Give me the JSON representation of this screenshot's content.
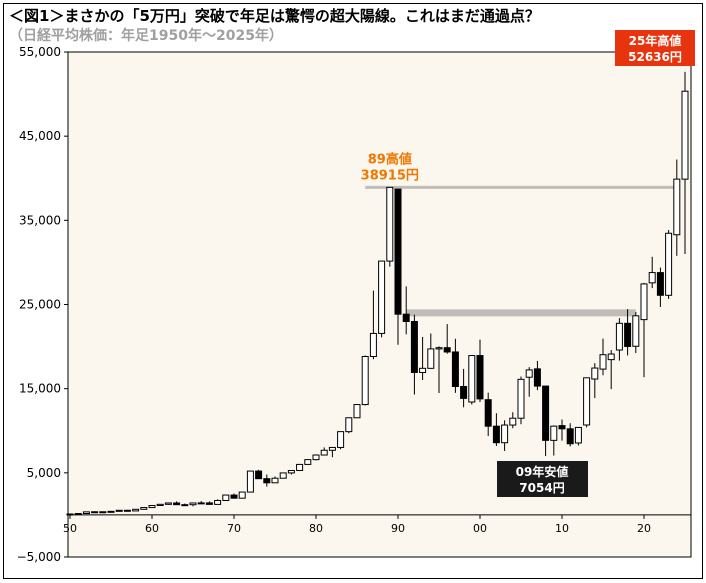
{
  "title": "＜図1＞まさかの「5万円」突破で年足は驚愕の超大陽線。これはまだ通過点？",
  "subtitle": "（日経平均株価：年足1950年〜2025年）",
  "colors": {
    "plot_bg": "#fbf6ee",
    "up_fill": "#ffffff",
    "down_fill": "#000000",
    "level_line": "#c0bdb8",
    "orange": "#f07800",
    "red_box": "#e8330f"
  },
  "annotations": [
    {
      "line1": "89高値",
      "line2": "38915円",
      "color": "orange",
      "value": 38915
    },
    {
      "line1": "09年安値",
      "line2": "7054円",
      "color": "black_box",
      "value": 7054
    },
    {
      "line1": "25年高値",
      "line2": "52636円",
      "color": "red_box",
      "value": 52636
    }
  ],
  "chart_data": {
    "type": "candlestick",
    "title": "",
    "xlabel": "",
    "ylabel": "",
    "ylim": [
      -5000,
      55000
    ],
    "xlim": [
      1950,
      2025
    ],
    "yticks": [
      -5000,
      5000,
      15000,
      25000,
      35000,
      45000,
      55000
    ],
    "ytick_labels": [
      "−5,000",
      "5,000",
      "15,000",
      "25,000",
      "35,000",
      "45,000",
      "55,000"
    ],
    "xticks": [
      1950,
      1960,
      1970,
      1980,
      1990,
      2000,
      2010,
      2020
    ],
    "xtick_labels": [
      "50",
      "60",
      "70",
      "80",
      "90",
      "00",
      "10",
      "20"
    ],
    "grid": false,
    "reference_lines": [
      38915,
      24000
    ],
    "years": [
      1950,
      1951,
      1952,
      1953,
      1954,
      1955,
      1956,
      1957,
      1958,
      1959,
      1960,
      1961,
      1962,
      1963,
      1964,
      1965,
      1966,
      1967,
      1968,
      1969,
      1970,
      1971,
      1972,
      1973,
      1974,
      1975,
      1976,
      1977,
      1978,
      1979,
      1980,
      1981,
      1982,
      1983,
      1984,
      1985,
      1986,
      1987,
      1988,
      1989,
      1990,
      1991,
      1992,
      1993,
      1994,
      1995,
      1996,
      1997,
      1998,
      1999,
      2000,
      2001,
      2002,
      2003,
      2004,
      2005,
      2006,
      2007,
      2008,
      2009,
      2010,
      2011,
      2012,
      2013,
      2014,
      2015,
      2016,
      2017,
      2018,
      2019,
      2020,
      2021,
      2022,
      2023,
      2024,
      2025
    ],
    "open": [
      109,
      101,
      166,
      362,
      377,
      356,
      425,
      549,
      475,
      666,
      874,
      1117,
      1259,
      1420,
      1217,
      1216,
      1417,
      1430,
      1250,
      1715,
      2359,
      1987,
      2714,
      5208,
      4306,
      3817,
      4359,
      4990,
      5280,
      6001,
      6570,
      7116,
      7682,
      8017,
      9894,
      11543,
      13113,
      18821,
      21564,
      30159,
      38712,
      23849,
      22983,
      16925,
      17417,
      19723,
      19868,
      19361,
      15258,
      13416,
      18934,
      13691,
      10542,
      8578,
      10676,
      11488,
      16361,
      17353,
      15307,
      8859,
      10609,
      10229,
      8549,
      10688,
      16147,
      17325,
      18450,
      19594,
      22764,
      20039,
      23204,
      27575,
      28791,
      26094,
      33288,
      39894
    ],
    "high": [
      110,
      170,
      368,
      420,
      380,
      430,
      560,
      600,
      670,
      880,
      1130,
      1260,
      1450,
      1610,
      1350,
      1430,
      1650,
      1600,
      1850,
      2360,
      2540,
      2740,
      5210,
      5360,
      4790,
      4570,
      5000,
      5290,
      6000,
      6590,
      7190,
      8020,
      8020,
      9890,
      11580,
      13130,
      18940,
      26650,
      30160,
      38915,
      38715,
      27150,
      23800,
      21150,
      21550,
      20020,
      22670,
      20920,
      17350,
      19000,
      20830,
      14530,
      12080,
      11240,
      12200,
      16450,
      17560,
      18300,
      15160,
      10640,
      11340,
      10890,
      10430,
      16320,
      18030,
      20950,
      19590,
      23380,
      24450,
      24100,
      27570,
      30670,
      29390,
      33850,
      42225,
      52636
    ],
    "low": [
      85,
      95,
      160,
      290,
      315,
      355,
      420,
      470,
      475,
      665,
      870,
      1090,
      1200,
      1190,
      1200,
      1020,
      1370,
      1250,
      1250,
      1700,
      1930,
      1980,
      2710,
      4440,
      3360,
      3800,
      4350,
      4800,
      5270,
      5970,
      6480,
      7110,
      6850,
      7800,
      9700,
      11500,
      13000,
      18500,
      21100,
      29500,
      20220,
      21450,
      14300,
      16030,
      17370,
      14480,
      19160,
      14500,
      12790,
      13120,
      13420,
      9380,
      8190,
      7600,
      10300,
      10770,
      14040,
      14830,
      6994,
      7054,
      8820,
      8140,
      8240,
      10400,
      13880,
      16590,
      14950,
      18330,
      18950,
      19240,
      16360,
      26950,
      24710,
      25660,
      30780,
      31000
    ],
    "close": [
      101,
      166,
      362,
      377,
      356,
      425,
      549,
      475,
      666,
      874,
      1117,
      1259,
      1420,
      1217,
      1216,
      1417,
      1430,
      1250,
      1715,
      2359,
      1987,
      2714,
      5208,
      4306,
      3817,
      4359,
      4990,
      5280,
      6001,
      6570,
      7116,
      7682,
      8017,
      9894,
      11543,
      13113,
      18821,
      21564,
      30159,
      38916,
      23849,
      22983,
      16925,
      17417,
      19723,
      19868,
      19361,
      15258,
      13842,
      18934,
      13786,
      10543,
      8579,
      10677,
      11489,
      16111,
      17226,
      15308,
      8860,
      10546,
      10229,
      8455,
      10395,
      16291,
      17451,
      19034,
      19114,
      22765,
      20015,
      23657,
      27444,
      28792,
      26095,
      33464,
      39895,
      50339
    ]
  }
}
